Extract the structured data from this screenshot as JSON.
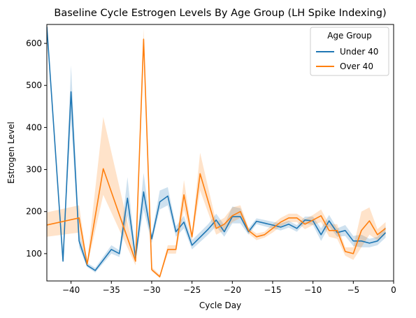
{
  "chart_data": {
    "type": "line",
    "title": "Baseline Cycle Estrogen Levels By Age Group (LH Spike Indexing)",
    "xlabel": "Cycle Day",
    "ylabel": "Estrogen Level",
    "xlim": [
      -43,
      0
    ],
    "ylim": [
      35,
      645
    ],
    "xticks": [
      -40,
      -35,
      -30,
      -25,
      -20,
      -15,
      -10,
      -5,
      0
    ],
    "yticks": [
      100,
      200,
      300,
      400,
      500,
      600
    ],
    "legend": {
      "title": "Age Group",
      "position": "top-right"
    },
    "series": [
      {
        "name": "Under 40",
        "color": "#1f77b4",
        "x": [
          -43,
          -41,
          -40,
          -39,
          -38,
          -37,
          -35,
          -34,
          -33,
          -32,
          -31,
          -30,
          -29,
          -28,
          -27,
          -26,
          -25,
          -23,
          -22,
          -21,
          -20,
          -19,
          -18,
          -17,
          -15,
          -14,
          -13,
          -12,
          -11,
          -10,
          -9,
          -8,
          -7,
          -6,
          -5,
          -4,
          -3,
          -2,
          -1
        ],
        "values": [
          640,
          82,
          485,
          130,
          72,
          60,
          110,
          100,
          232,
          90,
          247,
          135,
          223,
          237,
          152,
          175,
          120,
          158,
          180,
          152,
          188,
          188,
          152,
          177,
          168,
          163,
          170,
          160,
          180,
          178,
          145,
          178,
          150,
          155,
          130,
          130,
          125,
          130,
          150
        ],
        "lower": [
          640,
          82,
          420,
          115,
          68,
          55,
          100,
          92,
          190,
          80,
          205,
          125,
          205,
          215,
          140,
          160,
          110,
          145,
          165,
          140,
          172,
          172,
          145,
          170,
          160,
          155,
          162,
          152,
          172,
          168,
          130,
          165,
          140,
          142,
          118,
          115,
          115,
          120,
          138
        ],
        "upper": [
          640,
          82,
          548,
          150,
          78,
          66,
          120,
          108,
          282,
          100,
          292,
          145,
          250,
          258,
          165,
          190,
          132,
          170,
          195,
          168,
          212,
          208,
          160,
          184,
          176,
          172,
          178,
          168,
          188,
          188,
          160,
          192,
          160,
          168,
          142,
          145,
          135,
          140,
          165
        ]
      },
      {
        "name": "Over 40",
        "color": "#ff7f0e",
        "x": [
          -43,
          -39,
          -38,
          -36,
          -32,
          -31,
          -30,
          -29,
          -28,
          -27,
          -26,
          -25,
          -24,
          -22,
          -21,
          -20,
          -19,
          -18,
          -17,
          -16,
          -15,
          -14,
          -13,
          -12,
          -11,
          -10,
          -9,
          -8,
          -7,
          -6,
          -5,
          -4,
          -3,
          -2,
          -1
        ],
        "values": [
          168,
          185,
          75,
          302,
          82,
          610,
          62,
          45,
          110,
          110,
          240,
          140,
          290,
          160,
          170,
          190,
          200,
          155,
          140,
          145,
          160,
          175,
          185,
          185,
          170,
          180,
          190,
          155,
          155,
          105,
          100,
          155,
          178,
          145,
          160
        ],
        "lower": [
          140,
          150,
          70,
          240,
          72,
          585,
          58,
          42,
          100,
          100,
          205,
          130,
          250,
          145,
          155,
          175,
          185,
          148,
          132,
          138,
          150,
          165,
          175,
          175,
          158,
          168,
          175,
          140,
          135,
          95,
          85,
          115,
          145,
          132,
          145
        ],
        "upper": [
          198,
          215,
          82,
          425,
          92,
          635,
          68,
          50,
          120,
          120,
          275,
          150,
          340,
          175,
          185,
          210,
          215,
          162,
          148,
          152,
          170,
          185,
          195,
          195,
          182,
          192,
          205,
          170,
          170,
          115,
          115,
          200,
          210,
          158,
          175
        ]
      }
    ]
  }
}
